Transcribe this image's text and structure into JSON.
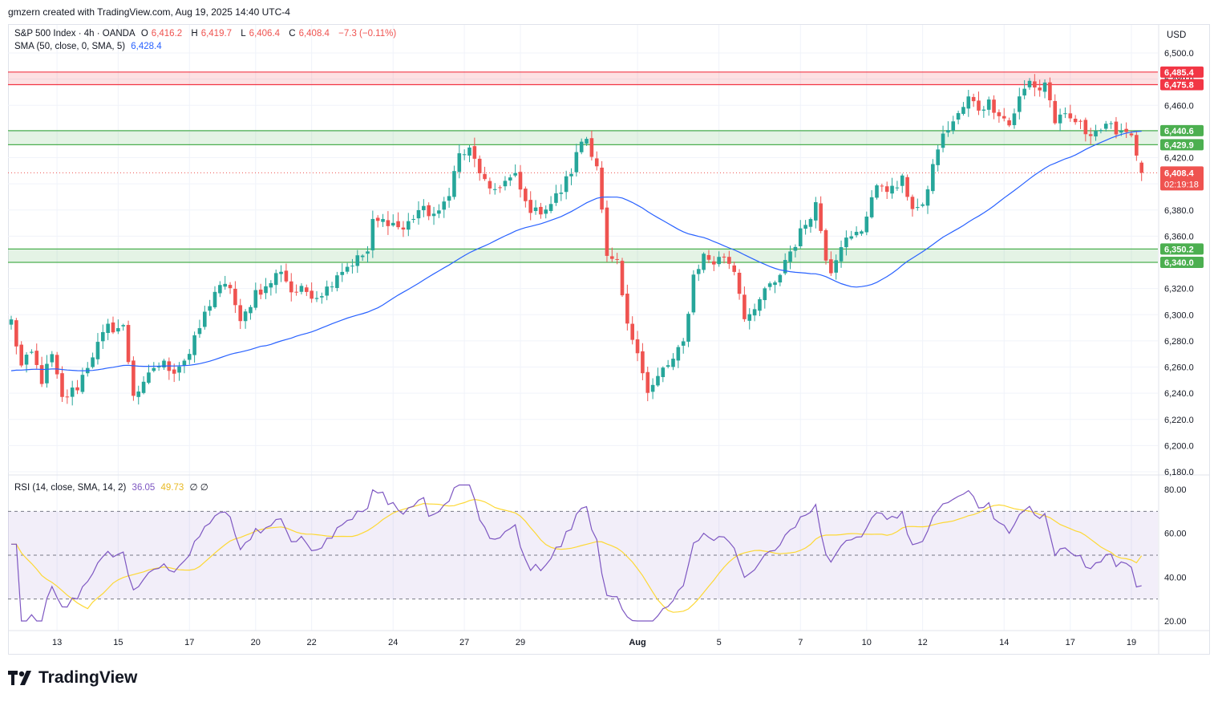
{
  "header": {
    "attribution": "gmzern created with TradingView.com, Aug 19, 2025 14:40 UTC-4"
  },
  "legend": {
    "symbol": "S&P 500 Index · 4h · OANDA",
    "open_label": "O",
    "open": "6,416.2",
    "high_label": "H",
    "high": "6,419.7",
    "low_label": "L",
    "low": "6,406.4",
    "close_label": "C",
    "close": "6,408.4",
    "change": "−7.3 (−0.11%)",
    "sma_label": "SMA (50, close, 0, SMA, 5)",
    "sma_value": "6,428.4",
    "rsi_label": "RSI (14, close, SMA, 14, 2)",
    "rsi_value": "36.05",
    "rsi_sma_value": "49.73",
    "rsi_extra": "∅  ∅"
  },
  "currency": "USD",
  "brand": {
    "name": "TradingView",
    "logo_icon": "tradingview-logo-icon"
  },
  "colors": {
    "up": "#26a69a",
    "down": "#ef5350",
    "sma": "#2962ff",
    "rsi": "#7e57c2",
    "rsi_sma": "#fdd835",
    "resistance": "#f23645",
    "support": "#4caf50"
  },
  "chart_data": [
    {
      "type": "candlestick",
      "ylim": [
        6180,
        6510
      ],
      "y_ticks": [
        "6,500.0",
        "6,480.0",
        "6,460.0",
        "6,440.0",
        "6,420.0",
        "6,400.0",
        "6,380.0",
        "6,360.0",
        "6,340.0",
        "6,320.0",
        "6,300.0",
        "6,280.0",
        "6,260.0",
        "6,240.0",
        "6,220.0",
        "6,200.0",
        "6,180.0"
      ],
      "y_tick_values": [
        6500,
        6480,
        6460,
        6440,
        6420,
        6400,
        6380,
        6360,
        6340,
        6320,
        6300,
        6280,
        6260,
        6240,
        6220,
        6200,
        6180
      ],
      "x_ticks": [
        {
          "label": "13",
          "bar": 9
        },
        {
          "label": "15",
          "bar": 21
        },
        {
          "label": "17",
          "bar": 35
        },
        {
          "label": "20",
          "bar": 48
        },
        {
          "label": "22",
          "bar": 59
        },
        {
          "label": "24",
          "bar": 75
        },
        {
          "label": "27",
          "bar": 89
        },
        {
          "label": "29",
          "bar": 100
        },
        {
          "label": "Aug",
          "bar": 123
        },
        {
          "label": "5",
          "bar": 139
        },
        {
          "label": "7",
          "bar": 155
        },
        {
          "label": "10",
          "bar": 168
        },
        {
          "label": "12",
          "bar": 179
        },
        {
          "label": "14",
          "bar": 195
        },
        {
          "label": "17",
          "bar": 208
        },
        {
          "label": "19",
          "bar": 220
        }
      ],
      "price_labels": [
        {
          "value": 6485.4,
          "text": "6,485.4",
          "kind": "resistance"
        },
        {
          "value": 6475.8,
          "text": "6,475.8",
          "kind": "resistance"
        },
        {
          "value": 6440.6,
          "text": "6,440.6",
          "kind": "support"
        },
        {
          "value": 6429.9,
          "text": "6,429.9",
          "kind": "support"
        },
        {
          "value": 6350.2,
          "text": "6,350.2",
          "kind": "support"
        },
        {
          "value": 6340.0,
          "text": "6,340.0",
          "kind": "support"
        }
      ],
      "last_price": {
        "value": 6408.4,
        "text": "6,408.4",
        "countdown": "02:19:18"
      },
      "zones": [
        {
          "low": 6475.8,
          "high": 6485.4,
          "kind": "resistance"
        },
        {
          "low": 6429.9,
          "high": 6440.6,
          "kind": "support"
        },
        {
          "low": 6340.0,
          "high": 6350.2,
          "kind": "support"
        }
      ],
      "anchors": [
        [
          0,
          6295
        ],
        [
          2,
          6260
        ],
        [
          4,
          6270
        ],
        [
          6,
          6250
        ],
        [
          8,
          6268
        ],
        [
          10,
          6235
        ],
        [
          13,
          6245
        ],
        [
          16,
          6270
        ],
        [
          19,
          6290
        ],
        [
          22,
          6290
        ],
        [
          24,
          6240
        ],
        [
          26,
          6245
        ],
        [
          28,
          6260
        ],
        [
          30,
          6262
        ],
        [
          32,
          6258
        ],
        [
          35,
          6270
        ],
        [
          38,
          6300
        ],
        [
          40,
          6318
        ],
        [
          43,
          6322
        ],
        [
          45,
          6292
        ],
        [
          48,
          6318
        ],
        [
          50,
          6320
        ],
        [
          53,
          6335
        ],
        [
          55,
          6318
        ],
        [
          58,
          6318
        ],
        [
          60,
          6315
        ],
        [
          62,
          6320
        ],
        [
          64,
          6332
        ],
        [
          67,
          6340
        ],
        [
          70,
          6348
        ],
        [
          71,
          6370
        ],
        [
          74,
          6372
        ],
        [
          77,
          6365
        ],
        [
          80,
          6380
        ],
        [
          84,
          6376
        ],
        [
          86,
          6395
        ],
        [
          88,
          6422
        ],
        [
          90,
          6425
        ],
        [
          92,
          6410
        ],
        [
          94,
          6392
        ],
        [
          96,
          6400
        ],
        [
          99,
          6405
        ],
        [
          101,
          6385
        ],
        [
          103,
          6378
        ],
        [
          106,
          6385
        ],
        [
          108,
          6395
        ],
        [
          110,
          6410
        ],
        [
          112,
          6433
        ],
        [
          113,
          6435
        ],
        [
          115,
          6415
        ],
        [
          117,
          6342
        ],
        [
          119,
          6338
        ],
        [
          121,
          6290
        ],
        [
          123,
          6275
        ],
        [
          125,
          6240
        ],
        [
          126,
          6245
        ],
        [
          128,
          6258
        ],
        [
          130,
          6265
        ],
        [
          132,
          6278
        ],
        [
          134,
          6330
        ],
        [
          136,
          6345
        ],
        [
          138,
          6340
        ],
        [
          140,
          6345
        ],
        [
          142,
          6335
        ],
        [
          144,
          6300
        ],
        [
          146,
          6300
        ],
        [
          148,
          6320
        ],
        [
          150,
          6322
        ],
        [
          152,
          6342
        ],
        [
          154,
          6355
        ],
        [
          156,
          6370
        ],
        [
          158,
          6385
        ],
        [
          160,
          6345
        ],
        [
          161,
          6335
        ],
        [
          163,
          6355
        ],
        [
          165,
          6358
        ],
        [
          167,
          6365
        ],
        [
          169,
          6390
        ],
        [
          171,
          6400
        ],
        [
          173,
          6395
        ],
        [
          175,
          6402
        ],
        [
          177,
          6383
        ],
        [
          179,
          6380
        ],
        [
          180,
          6398
        ],
        [
          182,
          6428
        ],
        [
          184,
          6443
        ],
        [
          186,
          6452
        ],
        [
          188,
          6465
        ],
        [
          190,
          6458
        ],
        [
          192,
          6462
        ],
        [
          194,
          6455
        ],
        [
          196,
          6445
        ],
        [
          198,
          6465
        ],
        [
          200,
          6478
        ],
        [
          202,
          6472
        ],
        [
          203,
          6478
        ],
        [
          205,
          6448
        ],
        [
          207,
          6450
        ],
        [
          209,
          6448
        ],
        [
          211,
          6440
        ],
        [
          214,
          6442
        ],
        [
          217,
          6442
        ],
        [
          220,
          6440
        ],
        [
          221,
          6418
        ],
        [
          222,
          6408.4
        ]
      ],
      "bar_count": 223
    },
    {
      "type": "line",
      "name": "RSI",
      "ylim": [
        15,
        85
      ],
      "y_ticks": [
        "80.00",
        "60.00",
        "40.00",
        "20.00"
      ],
      "y_tick_values": [
        80,
        60,
        40,
        20
      ],
      "bands": {
        "upper": 70,
        "middle": 50,
        "lower": 30
      },
      "last_rsi": 36.05,
      "last_rsi_sma": 49.73
    }
  ]
}
